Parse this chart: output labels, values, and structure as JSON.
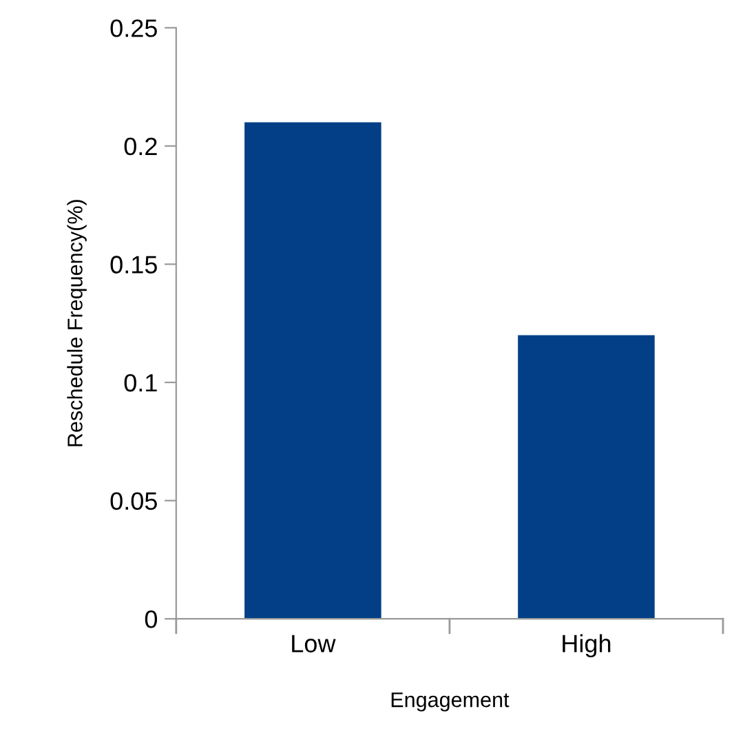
{
  "chart_data": {
    "type": "bar",
    "xlabel": "Engagement",
    "ylabel": "Reschedule Frequency(%)",
    "categories": [
      "Low",
      "High"
    ],
    "values": [
      0.21,
      0.12
    ],
    "color": "#023f86",
    "ylim": [
      0,
      0.25
    ],
    "yticks": [
      {
        "value": 0,
        "label": "0"
      },
      0.05,
      {
        "value": 0.1,
        "label": "0.1"
      },
      0.15,
      {
        "value": 0.2,
        "label": "0.2"
      },
      0.25
    ],
    "grid": false
  }
}
